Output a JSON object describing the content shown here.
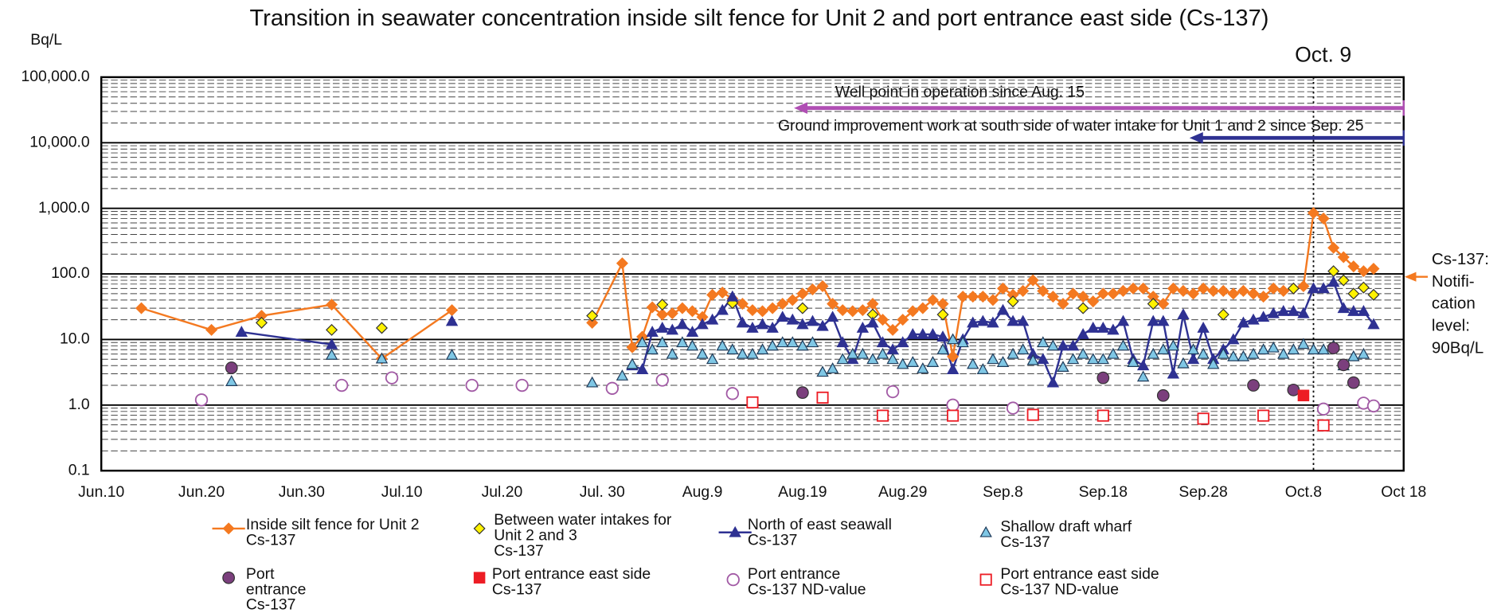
{
  "chart_data": {
    "type": "line",
    "title": "Transition in seawater concentration inside silt fence for Unit 2 and port entrance east side (Cs-137)",
    "ylabel": "Bq/L",
    "yscale": "log",
    "grid": true,
    "minor_grid": true,
    "xlim": [
      0,
      130
    ],
    "ylim": [
      0.1,
      100000
    ],
    "xticks": [
      {
        "value": 0,
        "label": "Jun.10"
      },
      {
        "value": 10,
        "label": "Jun.20"
      },
      {
        "value": 20,
        "label": "Jun.30"
      },
      {
        "value": 30,
        "label": "Jul.10"
      },
      {
        "value": 40,
        "label": "Jul.20"
      },
      {
        "value": 50,
        "label": "Jul. 30"
      },
      {
        "value": 60,
        "label": "Aug.9"
      },
      {
        "value": 70,
        "label": "Aug.19"
      },
      {
        "value": 80,
        "label": "Aug.29"
      },
      {
        "value": 90,
        "label": "Sep.8"
      },
      {
        "value": 100,
        "label": "Sep.18"
      },
      {
        "value": 110,
        "label": "Sep.28"
      },
      {
        "value": 120,
        "label": "Oct.8"
      },
      {
        "value": 130,
        "label": "Oct 18"
      }
    ],
    "yticks": [
      0.1,
      {
        "value": 1,
        "label": "1.0"
      },
      {
        "value": 10,
        "label": "10.0"
      },
      {
        "value": 100,
        "label": "100.0"
      },
      {
        "value": 1000,
        "label": "1,000.0"
      },
      {
        "value": 10000,
        "label": "10,000.0"
      },
      {
        "value": 100000,
        "label": "100,000.0"
      }
    ],
    "marker_line": {
      "label": "Oct. 9",
      "x": 121
    },
    "annotations": [
      "Well point in operation since Aug. 15",
      "Ground improvement work at south side of water intake for Unit 1 and 2 since Sep. 25"
    ],
    "notification_label": "Cs-137:\nNotifi-\ncation\nlevel:\n90Bq/L",
    "series": [
      {
        "name": "Inside silt fence for Unit 2\nCs-137",
        "color": "#f47920",
        "marker": "diamond",
        "filled": true,
        "line": true,
        "x": [
          4,
          11,
          16,
          23,
          28,
          35,
          null,
          49,
          52,
          53,
          54,
          55,
          56,
          57,
          58,
          59,
          60,
          61,
          62,
          63,
          64,
          65,
          66,
          67,
          68,
          69,
          70,
          71,
          72,
          73,
          74,
          75,
          76,
          77,
          78,
          79,
          80,
          81,
          82,
          83,
          84,
          85,
          86,
          87,
          88,
          89,
          90,
          91,
          92,
          93,
          94,
          95,
          96,
          97,
          98,
          99,
          100,
          101,
          102,
          103,
          104,
          105,
          106,
          107,
          108,
          109,
          110,
          111,
          112,
          113,
          114,
          115,
          116,
          117,
          118,
          119,
          120,
          121,
          122,
          123,
          124,
          125,
          126,
          127
        ],
        "values": [
          30,
          14,
          23,
          34,
          5.1,
          28,
          null,
          18,
          145,
          7.6,
          11,
          31,
          24,
          25,
          30,
          27,
          22,
          48,
          52,
          42,
          35,
          28,
          27,
          30,
          35,
          40,
          50,
          58,
          65,
          35,
          28,
          27,
          28,
          35,
          20,
          14,
          20,
          27,
          30,
          40,
          35,
          5.5,
          45,
          45,
          45,
          40,
          60,
          48,
          55,
          80,
          55,
          45,
          35,
          50,
          45,
          38,
          50,
          50,
          55,
          60,
          60,
          45,
          35,
          60,
          55,
          50,
          60,
          55,
          55,
          50,
          55,
          50,
          45,
          60,
          55,
          60,
          65,
          850,
          700,
          250,
          180,
          130,
          110,
          120
        ]
      },
      {
        "name": "Between water intakes for\nUnit 2 and 3\nCs-137",
        "color": "#fff200",
        "edgecolor": "#333333",
        "marker": "diamond",
        "filled": true,
        "line": false,
        "x": [
          16,
          23,
          28,
          49,
          56,
          63,
          70,
          77,
          84,
          91,
          98,
          105,
          112,
          119,
          123,
          124,
          125,
          126,
          127
        ],
        "values": [
          18,
          14,
          15,
          23,
          34,
          36,
          30,
          24,
          24,
          38,
          30,
          35,
          24,
          60,
          110,
          80,
          50,
          62,
          48
        ]
      },
      {
        "name": "North of east seawall\nCs-137",
        "color": "#2e3192",
        "marker": "triangle",
        "filled": true,
        "line": true,
        "x": [
          14,
          23,
          null,
          35,
          null,
          53,
          54,
          55,
          56,
          57,
          58,
          59,
          60,
          61,
          62,
          63,
          64,
          65,
          66,
          67,
          68,
          69,
          70,
          71,
          72,
          73,
          74,
          75,
          76,
          77,
          78,
          79,
          80,
          81,
          82,
          83,
          84,
          85,
          86,
          87,
          88,
          89,
          90,
          91,
          92,
          93,
          94,
          95,
          96,
          97,
          98,
          99,
          100,
          101,
          102,
          103,
          104,
          105,
          106,
          107,
          108,
          109,
          110,
          111,
          112,
          113,
          114,
          115,
          116,
          117,
          118,
          119,
          120,
          121,
          122,
          123,
          124,
          125,
          126,
          127
        ],
        "values": [
          13,
          8.4,
          null,
          19,
          null,
          4,
          3.5,
          13,
          15,
          14,
          17,
          13,
          17,
          20,
          28,
          45,
          18,
          15,
          17,
          15,
          22,
          20,
          17,
          19,
          16,
          22,
          9,
          5,
          15,
          18,
          9,
          7,
          9,
          12,
          12,
          12,
          11,
          3.5,
          10,
          18,
          19,
          18,
          28,
          19,
          19,
          6,
          5,
          2.2,
          8,
          8,
          12,
          15,
          15,
          14,
          19,
          5,
          4,
          19,
          19,
          3,
          24,
          5,
          15,
          5,
          7,
          10,
          18,
          20,
          22,
          25,
          27,
          27,
          25,
          60,
          60,
          75,
          30,
          27,
          27,
          17
        ]
      },
      {
        "name": "Shallow draft wharf\nCs-137",
        "color": "#7fc7e5",
        "edgecolor": "#1f3b5a",
        "marker": "triangle",
        "filled": true,
        "line": false,
        "x": [
          13,
          23,
          28,
          35,
          49,
          52,
          53,
          54,
          55,
          56,
          57,
          58,
          59,
          60,
          61,
          62,
          63,
          64,
          65,
          66,
          67,
          68,
          69,
          70,
          71,
          72,
          73,
          74,
          75,
          76,
          77,
          78,
          79,
          80,
          81,
          82,
          83,
          84,
          85,
          86,
          87,
          88,
          89,
          90,
          91,
          92,
          93,
          94,
          95,
          96,
          97,
          98,
          99,
          100,
          101,
          102,
          103,
          104,
          105,
          106,
          107,
          108,
          109,
          110,
          111,
          112,
          113,
          114,
          115,
          116,
          117,
          118,
          119,
          120,
          121,
          122,
          123,
          124,
          125,
          126
        ],
        "values": [
          2.3,
          5.8,
          5.1,
          5.8,
          2.2,
          2.8,
          4.2,
          9,
          7,
          9,
          6,
          9,
          8,
          6,
          5,
          8,
          7,
          6,
          6,
          7,
          8,
          9,
          9,
          8,
          9,
          3.2,
          3.6,
          5,
          6,
          6,
          5,
          6,
          5,
          4.2,
          4.5,
          3.6,
          4.5,
          7,
          10,
          9,
          4.2,
          3.5,
          5,
          4.5,
          6,
          7,
          4.8,
          9,
          8,
          3.8,
          5,
          6,
          5,
          5,
          6,
          8,
          4.5,
          2.7,
          6,
          7,
          8,
          4.3,
          7,
          6,
          4.2,
          6,
          5.5,
          5.5,
          6,
          7,
          7.5,
          6,
          7,
          8.5,
          7,
          7,
          8,
          4,
          5.5,
          6
        ]
      },
      {
        "name": "Port\nentrance\nCs-137",
        "color": "#7b3f7d",
        "edgecolor": "#333333",
        "marker": "circle",
        "filled": true,
        "line": false,
        "x": [
          13,
          70,
          100,
          106,
          115,
          119,
          123,
          124,
          125
        ],
        "values": [
          3.7,
          1.55,
          2.6,
          1.4,
          2.0,
          1.7,
          7.4,
          4.1,
          2.2
        ]
      },
      {
        "name": "Port entrance east side\nCs-137",
        "color": "#ed1c24",
        "marker": "square",
        "filled": true,
        "line": false,
        "x": [
          120
        ],
        "values": [
          1.4
        ]
      },
      {
        "name": "Port entrance\nCs-137 ND-value",
        "color": "#a25aa5",
        "marker": "circle",
        "filled": false,
        "line": false,
        "x": [
          10,
          24,
          29,
          37,
          42,
          51,
          56,
          63,
          79,
          85,
          91,
          122,
          126,
          127
        ],
        "values": [
          1.2,
          2.0,
          2.6,
          2.0,
          2.0,
          1.8,
          2.4,
          1.5,
          1.6,
          1.0,
          0.9,
          0.87,
          1.07,
          0.97
        ]
      },
      {
        "name": "Port entrance east side\nCs-137 ND-value",
        "color": "#ed1c24",
        "marker": "square",
        "filled": false,
        "line": false,
        "x": [
          65,
          72,
          78,
          85,
          93,
          100,
          110,
          116,
          122
        ],
        "values": [
          1.1,
          1.3,
          0.69,
          0.69,
          0.71,
          0.69,
          0.62,
          0.69,
          0.49
        ]
      }
    ]
  }
}
